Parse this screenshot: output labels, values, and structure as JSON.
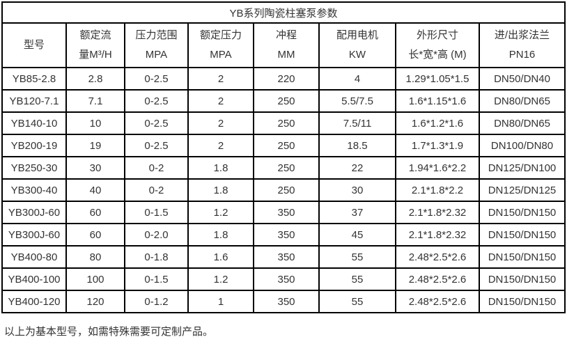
{
  "table": {
    "title": "YB系列陶瓷柱塞泵参数",
    "columns": [
      {
        "line1": "型号",
        "line2": ""
      },
      {
        "line1": "额定流",
        "line2": "量M³/H"
      },
      {
        "line1": "压力范围",
        "line2": "MPA"
      },
      {
        "line1": "额定压力",
        "line2": "MPA"
      },
      {
        "line1": "冲程",
        "line2": "MM"
      },
      {
        "line1": "配用电机",
        "line2": "KW"
      },
      {
        "line1": "外形尺寸",
        "line2": "长*宽*高 (M)"
      },
      {
        "line1": "进/出浆法兰",
        "line2": "PN16"
      }
    ],
    "rows": [
      [
        "YB85-2.8",
        "2.8",
        "0-2.5",
        "2",
        "220",
        "4",
        "1.29*1.05*1.5",
        "DN50/DN40"
      ],
      [
        "YB120-7.1",
        "7.1",
        "0-2.5",
        "2",
        "250",
        "5.5/7.5",
        "1.6*1.15*1.6",
        "DN80/DN65"
      ],
      [
        "YB140-10",
        "10",
        "0-2.5",
        "2",
        "250",
        "7.5/11",
        "1.6*1.2*1.6",
        "DN80/DN65"
      ],
      [
        "YB200-19",
        "19",
        "0-2.5",
        "2",
        "250",
        "18.5",
        "1.7*1.3*1.9",
        "DN100/DN80"
      ],
      [
        "YB250-30",
        "30",
        "0-2",
        "1.8",
        "250",
        "22",
        "1.94*1.6*2.2",
        "DN125/DN100"
      ],
      [
        "YB300-40",
        "40",
        "0-2",
        "1.8",
        "250",
        "30",
        "2.1*1.8*2.2",
        "DN125/DN125"
      ],
      [
        "YB300J-60",
        "60",
        "0-1.5",
        "1.2",
        "350",
        "37",
        "2.1*1.8*2.32",
        "DN150/DN150"
      ],
      [
        "YB300J-60",
        "60",
        "0-2.0",
        "1.8",
        "350",
        "45",
        "2.1*1.8*2.32",
        "DN150/DN150"
      ],
      [
        "YB400-80",
        "80",
        "0-1.8",
        "1.6",
        "350",
        "55",
        "2.48*2.5*2.6",
        "DN150/DN150"
      ],
      [
        "YB400-100",
        "100",
        "0-1.5",
        "1.2",
        "350",
        "55",
        "2.48*2.5*2.6",
        "DN150/DN150"
      ],
      [
        "YB400-120",
        "120",
        "0-1.2",
        "1",
        "350",
        "55",
        "2.48*2.5*2.6",
        "DN150/DN150"
      ]
    ],
    "footnote": "以上为基本型号，如需特殊需要可定制产品。"
  },
  "colors": {
    "border": "#000000",
    "text": "#333333",
    "background": "#ffffff"
  }
}
